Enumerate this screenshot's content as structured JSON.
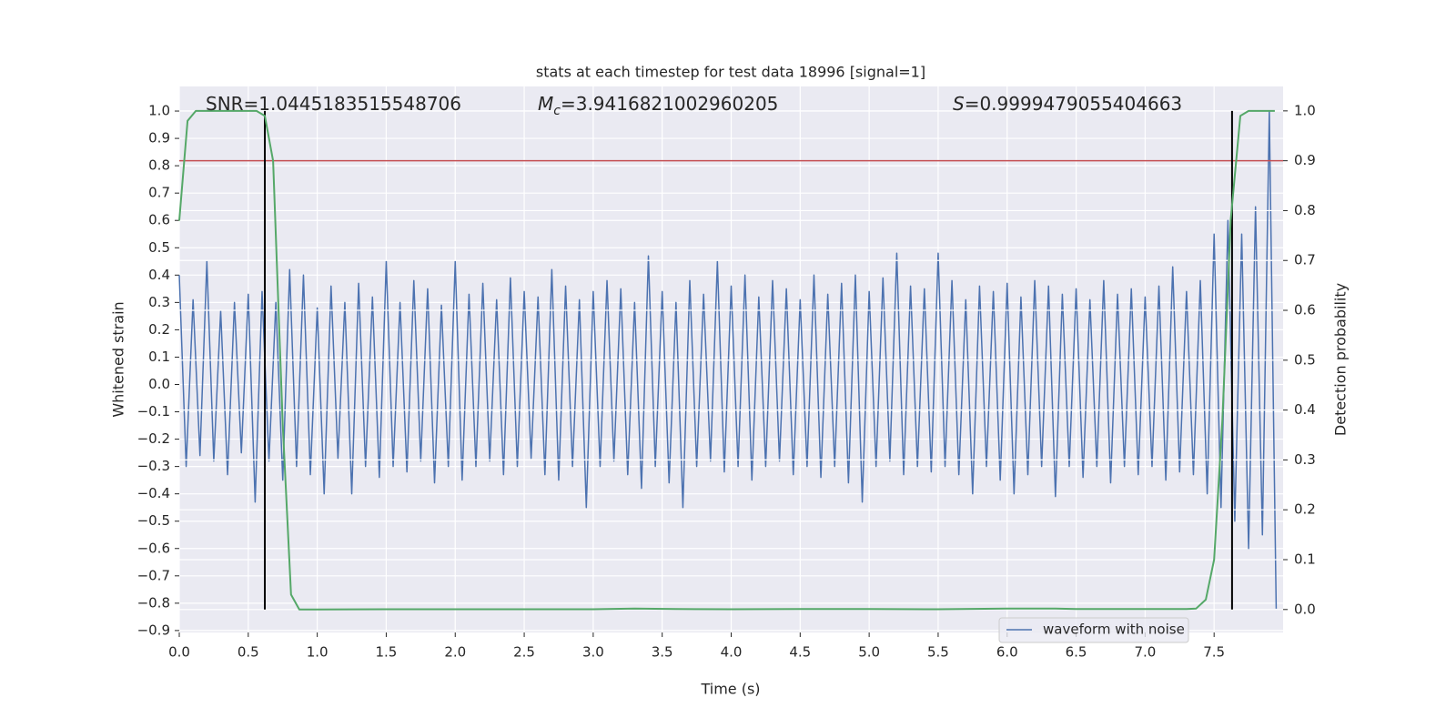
{
  "chart_data": {
    "type": "line",
    "title": "stats at each timestep for test data 18996 [signal=1]",
    "xlabel": "Time (s)",
    "ylabel": "Whitened strain",
    "y2label": "Detection probability",
    "grid": true,
    "xlim": [
      0,
      8.0
    ],
    "ylim": [
      -0.907,
      1.09
    ],
    "y2lim": [
      -0.046,
      1.049
    ],
    "xticks": [
      {
        "value": 0,
        "label": "0.0"
      },
      0.5,
      {
        "value": 1,
        "label": "1.0"
      },
      1.5,
      {
        "value": 2,
        "label": "2.0"
      },
      2.5,
      {
        "value": 3,
        "label": "3.0"
      },
      3.5,
      {
        "value": 4,
        "label": "4.0"
      },
      4.5,
      {
        "value": 5,
        "label": "5.0"
      },
      5.5,
      {
        "value": 6,
        "label": "6.0"
      },
      6.5,
      {
        "value": 7,
        "label": "7.0"
      },
      7.5
    ],
    "yticks": [
      {
        "value": -0.9,
        "label": "−0.9"
      },
      {
        "value": -0.8,
        "label": "−0.8"
      },
      {
        "value": -0.7,
        "label": "−0.7"
      },
      {
        "value": -0.6,
        "label": "−0.6"
      },
      {
        "value": -0.5,
        "label": "−0.5"
      },
      {
        "value": -0.4,
        "label": "−0.4"
      },
      {
        "value": -0.3,
        "label": "−0.3"
      },
      {
        "value": -0.2,
        "label": "−0.2"
      },
      {
        "value": -0.1,
        "label": "−0.1"
      },
      {
        "value": 0,
        "label": "0.0"
      },
      0.1,
      0.2,
      0.3,
      0.4,
      0.5,
      0.6,
      0.7,
      0.8,
      0.9,
      {
        "value": 1,
        "label": "1.0"
      }
    ],
    "y2ticks": [
      {
        "value": 0,
        "label": "0.0"
      },
      0.1,
      0.2,
      0.3,
      0.4,
      0.5,
      0.6,
      0.7,
      0.8,
      0.9,
      {
        "value": 1,
        "label": "1.0"
      }
    ],
    "annotations": [
      {
        "text": "SNR=1.0445183515548706"
      },
      {
        "symbol": "M",
        "subscript": "c",
        "text": "=3.9416821002960205"
      },
      {
        "symbol": "S",
        "text": "=0.9999479055404663"
      }
    ],
    "series": [
      {
        "name": "waveform with noise",
        "color": "#4c72b0",
        "axis": "y",
        "x": [
          0,
          0.05,
          0.1,
          0.15,
          0.2,
          0.25,
          0.3,
          0.35,
          0.4,
          0.45,
          0.5,
          0.55,
          0.6,
          0.65,
          0.7,
          0.75,
          0.8,
          0.85,
          0.9,
          0.95,
          1,
          1.05,
          1.1,
          1.15,
          1.2,
          1.25,
          1.3,
          1.35,
          1.4,
          1.45,
          1.5,
          1.55,
          1.6,
          1.65,
          1.7,
          1.75,
          1.8,
          1.85,
          1.9,
          1.95,
          2,
          2.05,
          2.1,
          2.15,
          2.2,
          2.25,
          2.3,
          2.35,
          2.4,
          2.45,
          2.5,
          2.55,
          2.6,
          2.65,
          2.7,
          2.75,
          2.8,
          2.85,
          2.9,
          2.95,
          3,
          3.05,
          3.1,
          3.15,
          3.2,
          3.25,
          3.3,
          3.35,
          3.4,
          3.45,
          3.5,
          3.55,
          3.6,
          3.65,
          3.7,
          3.75,
          3.8,
          3.85,
          3.9,
          3.95,
          4,
          4.05,
          4.1,
          4.15,
          4.2,
          4.25,
          4.3,
          4.35,
          4.4,
          4.45,
          4.5,
          4.55,
          4.6,
          4.65,
          4.7,
          4.75,
          4.8,
          4.85,
          4.9,
          4.95,
          5,
          5.05,
          5.1,
          5.15,
          5.2,
          5.25,
          5.3,
          5.35,
          5.4,
          5.45,
          5.5,
          5.55,
          5.6,
          5.65,
          5.7,
          5.75,
          5.8,
          5.85,
          5.9,
          5.95,
          6,
          6.05,
          6.1,
          6.15,
          6.2,
          6.25,
          6.3,
          6.35,
          6.4,
          6.45,
          6.5,
          6.55,
          6.6,
          6.65,
          6.7,
          6.75,
          6.8,
          6.85,
          6.9,
          6.95,
          7,
          7.05,
          7.1,
          7.15,
          7.2,
          7.25,
          7.3,
          7.35,
          7.4,
          7.45,
          7.5,
          7.55,
          7.6,
          7.65,
          7.7,
          7.75,
          7.8,
          7.85,
          7.9,
          7.95
        ],
        "values": [
          0.4,
          -0.3,
          0.31,
          -0.26,
          0.45,
          -0.28,
          0.27,
          -0.33,
          0.3,
          -0.25,
          0.33,
          -0.43,
          0.34,
          -0.28,
          0.3,
          -0.35,
          0.42,
          -0.3,
          0.4,
          -0.33,
          0.28,
          -0.4,
          0.36,
          -0.27,
          0.3,
          -0.4,
          0.37,
          -0.3,
          0.32,
          -0.34,
          0.45,
          -0.3,
          0.3,
          -0.32,
          0.38,
          -0.28,
          0.35,
          -0.36,
          0.29,
          -0.3,
          0.45,
          -0.35,
          0.33,
          -0.3,
          0.37,
          -0.28,
          0.31,
          -0.33,
          0.39,
          -0.3,
          0.34,
          -0.27,
          0.32,
          -0.33,
          0.42,
          -0.35,
          0.36,
          -0.3,
          0.31,
          -0.45,
          0.34,
          -0.3,
          0.38,
          -0.28,
          0.35,
          -0.33,
          0.3,
          -0.38,
          0.47,
          -0.3,
          0.34,
          -0.36,
          0.3,
          -0.45,
          0.38,
          -0.3,
          0.33,
          -0.28,
          0.45,
          -0.32,
          0.36,
          -0.3,
          0.4,
          -0.35,
          0.32,
          -0.3,
          0.38,
          -0.28,
          0.35,
          -0.33,
          0.31,
          -0.3,
          0.4,
          -0.34,
          0.33,
          -0.3,
          0.37,
          -0.36,
          0.4,
          -0.43,
          0.34,
          -0.3,
          0.39,
          -0.28,
          0.48,
          -0.33,
          0.36,
          -0.3,
          0.35,
          -0.32,
          0.48,
          -0.3,
          0.38,
          -0.33,
          0.31,
          -0.4,
          0.36,
          -0.3,
          0.34,
          -0.35,
          0.37,
          -0.4,
          0.32,
          -0.33,
          0.38,
          -0.3,
          0.36,
          -0.41,
          0.33,
          -0.3,
          0.35,
          -0.34,
          0.31,
          -0.3,
          0.38,
          -0.36,
          0.33,
          -0.3,
          0.35,
          -0.33,
          0.32,
          -0.3,
          0.36,
          -0.35,
          0.43,
          -0.32,
          0.34,
          -0.33,
          0.38,
          -0.4,
          0.55,
          -0.45,
          0.6,
          -0.5,
          0.55,
          -0.6,
          0.65,
          -0.55,
          1.0,
          -0.82
        ]
      },
      {
        "color": "#55a868",
        "axis": "y2",
        "x": [
          0,
          0.06,
          0.12,
          0.19,
          0.25,
          0.31,
          0.37,
          0.44,
          0.5,
          0.56,
          0.62,
          0.68,
          0.75,
          0.81,
          0.87,
          1,
          1.5,
          2,
          2.5,
          3,
          3.3,
          3.6,
          4,
          4.5,
          5,
          5.5,
          6,
          6.1,
          6.35,
          6.5,
          7,
          7.3,
          7.37,
          7.44,
          7.5,
          7.56,
          7.62,
          7.69,
          7.75,
          7.81,
          7.87,
          7.94
        ],
        "values": [
          0.78,
          0.98,
          1.0,
          1.0,
          1.0,
          1.0,
          1.0,
          1.0,
          1.0,
          1.0,
          0.99,
          0.9,
          0.37,
          0.03,
          0.0,
          0.0,
          0.0005,
          0.0005,
          0.0005,
          0.0005,
          0.002,
          0.001,
          0.0005,
          0.001,
          0.001,
          0.0005,
          0.002,
          0.002,
          0.002,
          0.001,
          0.001,
          0.001,
          0.002,
          0.02,
          0.1,
          0.38,
          0.78,
          0.99,
          1.0,
          1.0,
          1.0,
          1.0
        ]
      }
    ],
    "hline": {
      "value": 0.9,
      "axis": "y2",
      "color": "#c44e52"
    },
    "vlines": {
      "x": [
        0.62,
        7.63
      ],
      "ymin": 0,
      "ymax": 1,
      "axis": "y2",
      "color": "#000000"
    }
  }
}
